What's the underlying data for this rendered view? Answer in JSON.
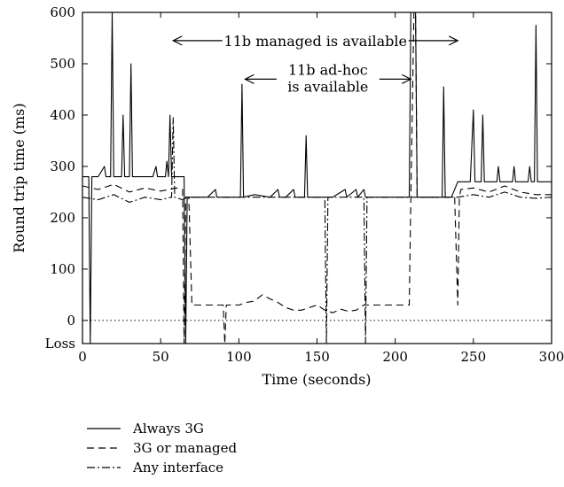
{
  "chart_data": {
    "type": "line",
    "title": "",
    "xlabel": "Time (seconds)",
    "ylabel": "Round trip time (ms)",
    "xlim": [
      0,
      300
    ],
    "ylim": [
      -45,
      600
    ],
    "x_ticks": [
      0,
      50,
      100,
      150,
      200,
      250,
      300
    ],
    "y_ticks": [
      {
        "value": 600,
        "label": "600"
      },
      {
        "value": 500,
        "label": "500"
      },
      {
        "value": 400,
        "label": "400"
      },
      {
        "value": 300,
        "label": "300"
      },
      {
        "value": 200,
        "label": "200"
      },
      {
        "value": 100,
        "label": "100"
      },
      {
        "value": 0,
        "label": "0"
      },
      {
        "value": -45,
        "label": "Loss"
      }
    ],
    "grid": false,
    "reference_line": {
      "y": 0,
      "style": "dotted"
    },
    "legend_position": "below-left",
    "annotations": [
      {
        "text": "11b managed is available",
        "from": 58,
        "to": 240,
        "y": 545
      },
      {
        "text_lines": [
          "11b ad-hoc",
          "is available"
        ],
        "from": 104,
        "to": 210,
        "y": 470
      }
    ],
    "series": [
      {
        "name": "Always 3G",
        "dash": "solid",
        "points": [
          [
            0,
            280
          ],
          [
            4,
            280
          ],
          [
            5,
            -45
          ],
          [
            6,
            280
          ],
          [
            10,
            280
          ],
          [
            14,
            300
          ],
          [
            15,
            280
          ],
          [
            18,
            280
          ],
          [
            19,
            600
          ],
          [
            20,
            280
          ],
          [
            25,
            280
          ],
          [
            26,
            400
          ],
          [
            27,
            280
          ],
          [
            30,
            280
          ],
          [
            31,
            500
          ],
          [
            32,
            280
          ],
          [
            45,
            280
          ],
          [
            47,
            300
          ],
          [
            48,
            280
          ],
          [
            53,
            280
          ],
          [
            54,
            310
          ],
          [
            55,
            280
          ],
          [
            56,
            400
          ],
          [
            57,
            280
          ],
          [
            65,
            280
          ],
          [
            66,
            -45
          ],
          [
            67,
            240
          ],
          [
            80,
            240
          ],
          [
            85,
            255
          ],
          [
            86,
            240
          ],
          [
            101,
            240
          ],
          [
            102,
            460
          ],
          [
            103,
            240
          ],
          [
            110,
            245
          ],
          [
            120,
            240
          ],
          [
            125,
            255
          ],
          [
            126,
            240
          ],
          [
            130,
            240
          ],
          [
            135,
            255
          ],
          [
            136,
            240
          ],
          [
            142,
            240
          ],
          [
            143,
            360
          ],
          [
            144,
            240
          ],
          [
            160,
            240
          ],
          [
            168,
            255
          ],
          [
            169,
            240
          ],
          [
            175,
            255
          ],
          [
            176,
            240
          ],
          [
            180,
            255
          ],
          [
            181,
            240
          ],
          [
            209,
            240
          ],
          [
            210,
            600
          ],
          [
            211,
            600
          ],
          [
            213,
            600
          ],
          [
            214,
            240
          ],
          [
            230,
            240
          ],
          [
            231,
            455
          ],
          [
            232,
            240
          ],
          [
            236,
            240
          ],
          [
            240,
            270
          ],
          [
            248,
            270
          ],
          [
            250,
            410
          ],
          [
            251,
            270
          ],
          [
            255,
            270
          ],
          [
            256,
            400
          ],
          [
            257,
            270
          ],
          [
            265,
            270
          ],
          [
            266,
            300
          ],
          [
            267,
            270
          ],
          [
            275,
            270
          ],
          [
            276,
            300
          ],
          [
            277,
            270
          ],
          [
            285,
            270
          ],
          [
            286,
            300
          ],
          [
            287,
            270
          ],
          [
            289,
            270
          ],
          [
            290,
            575
          ],
          [
            291,
            270
          ],
          [
            300,
            270
          ]
        ]
      },
      {
        "name": "3G or managed",
        "dash": "8,5",
        "points": [
          [
            0,
            262
          ],
          [
            10,
            255
          ],
          [
            20,
            265
          ],
          [
            30,
            250
          ],
          [
            40,
            258
          ],
          [
            50,
            252
          ],
          [
            60,
            258
          ],
          [
            64,
            255
          ],
          [
            65,
            -45
          ],
          [
            66,
            240
          ],
          [
            68,
            240
          ],
          [
            70,
            30
          ],
          [
            80,
            30
          ],
          [
            90,
            30
          ],
          [
            91,
            -45
          ],
          [
            92,
            30
          ],
          [
            100,
            30
          ],
          [
            105,
            35
          ],
          [
            110,
            38
          ],
          [
            115,
            50
          ],
          [
            120,
            42
          ],
          [
            125,
            35
          ],
          [
            130,
            25
          ],
          [
            135,
            20
          ],
          [
            140,
            20
          ],
          [
            145,
            25
          ],
          [
            150,
            30
          ],
          [
            155,
            20
          ],
          [
            160,
            15
          ],
          [
            165,
            22
          ],
          [
            170,
            18
          ],
          [
            175,
            20
          ],
          [
            180,
            30
          ],
          [
            190,
            30
          ],
          [
            200,
            30
          ],
          [
            209,
            30
          ],
          [
            210,
            240
          ],
          [
            212,
            600
          ],
          [
            213,
            600
          ],
          [
            214,
            240
          ],
          [
            238,
            240
          ],
          [
            240,
            30
          ],
          [
            241,
            240
          ],
          [
            242,
            255
          ],
          [
            250,
            258
          ],
          [
            260,
            250
          ],
          [
            270,
            262
          ],
          [
            280,
            250
          ],
          [
            290,
            245
          ],
          [
            300,
            245
          ]
        ]
      },
      {
        "name": "Any interface",
        "dash": "9,3,2,3",
        "points": [
          [
            0,
            240
          ],
          [
            10,
            235
          ],
          [
            20,
            245
          ],
          [
            30,
            230
          ],
          [
            40,
            240
          ],
          [
            50,
            235
          ],
          [
            57,
            240
          ],
          [
            58,
            395
          ],
          [
            59,
            240
          ],
          [
            64,
            235
          ],
          [
            66,
            240
          ],
          [
            70,
            240
          ],
          [
            80,
            240
          ],
          [
            90,
            240
          ],
          [
            100,
            240
          ],
          [
            110,
            240
          ],
          [
            120,
            240
          ],
          [
            130,
            240
          ],
          [
            140,
            240
          ],
          [
            150,
            240
          ],
          [
            155,
            240
          ],
          [
            156,
            -45
          ],
          [
            157,
            240
          ],
          [
            160,
            240
          ],
          [
            170,
            240
          ],
          [
            180,
            240
          ],
          [
            181,
            -45
          ],
          [
            182,
            240
          ],
          [
            190,
            240
          ],
          [
            200,
            240
          ],
          [
            210,
            240
          ],
          [
            220,
            240
          ],
          [
            230,
            240
          ],
          [
            240,
            240
          ],
          [
            250,
            245
          ],
          [
            260,
            240
          ],
          [
            270,
            250
          ],
          [
            280,
            240
          ],
          [
            290,
            238
          ],
          [
            300,
            240
          ]
        ]
      }
    ]
  }
}
